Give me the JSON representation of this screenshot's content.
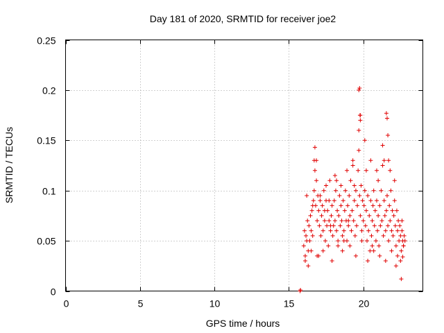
{
  "chart_data": {
    "type": "scatter",
    "title": "Day 181 of 2020, SRMTID for receiver joe2",
    "xlabel": "GPS time / hours",
    "ylabel": "SRMTID / TECUs",
    "xlim": [
      0,
      24
    ],
    "ylim": [
      0,
      0.25
    ],
    "xticks": [
      0,
      5,
      10,
      15,
      20
    ],
    "xtick_labels": [
      "0",
      "5",
      "10",
      "15",
      "20"
    ],
    "yticks": [
      0,
      0.05,
      0.1,
      0.15,
      0.2,
      0.25
    ],
    "ytick_labels": [
      "0",
      "0.05",
      "0.1",
      "0.15",
      "0.2",
      "0.25"
    ],
    "grid": true,
    "marker": "+",
    "color": "#e00000",
    "series": [
      {
        "name": "SRMTID",
        "x": [
          15.75,
          15.78,
          16.0,
          16.05,
          16.1,
          16.15,
          16.2,
          16.25,
          16.3,
          16.35,
          16.4,
          16.45,
          16.5,
          16.55,
          16.6,
          16.65,
          16.7,
          16.75,
          16.8,
          16.85,
          16.9,
          16.95,
          17.0,
          17.05,
          17.1,
          17.15,
          17.2,
          17.25,
          17.3,
          17.35,
          17.4,
          17.45,
          17.5,
          17.55,
          17.6,
          17.65,
          17.7,
          17.75,
          17.8,
          17.85,
          17.9,
          17.95,
          18.0,
          18.05,
          18.1,
          18.15,
          18.2,
          18.25,
          18.3,
          18.35,
          18.4,
          18.45,
          18.5,
          18.55,
          18.6,
          18.65,
          18.7,
          18.75,
          18.8,
          18.85,
          18.9,
          18.95,
          19.0,
          19.05,
          19.1,
          19.15,
          19.2,
          19.25,
          19.3,
          19.35,
          19.4,
          19.45,
          19.5,
          19.55,
          19.6,
          19.65,
          19.7,
          19.75,
          19.8,
          19.85,
          19.9,
          19.95,
          20.0,
          20.05,
          20.1,
          20.15,
          20.2,
          20.25,
          20.3,
          20.35,
          20.4,
          20.45,
          20.5,
          20.55,
          20.6,
          20.65,
          20.7,
          20.75,
          20.8,
          20.85,
          20.9,
          20.95,
          21.0,
          21.05,
          21.1,
          21.15,
          21.2,
          21.25,
          21.3,
          21.35,
          21.4,
          21.45,
          21.5,
          21.55,
          21.6,
          21.65,
          21.7,
          21.75,
          21.8,
          21.85,
          21.9,
          21.95,
          22.0,
          22.05,
          22.1,
          22.15,
          22.2,
          22.25,
          22.3,
          22.35,
          22.4,
          22.45,
          22.5,
          22.55,
          22.6,
          22.65,
          22.7,
          22.75,
          22.8,
          16.1,
          16.3,
          16.5,
          16.7,
          16.9,
          17.1,
          17.3,
          17.5,
          17.7,
          17.9,
          18.1,
          18.3,
          18.5,
          18.7,
          18.9,
          19.1,
          19.3,
          19.5,
          19.7,
          19.9,
          20.1,
          20.3,
          20.5,
          20.7,
          20.9,
          21.1,
          21.3,
          21.5,
          21.7,
          21.9,
          22.1,
          22.3,
          22.5,
          22.7,
          16.2,
          16.6,
          17.0,
          17.4,
          17.8,
          18.2,
          18.6,
          19.0,
          19.4,
          19.8,
          20.2,
          20.6,
          21.0,
          21.4,
          21.8,
          22.2,
          22.6,
          16.75,
          16.85,
          19.7,
          19.75,
          19.78,
          19.8,
          21.55,
          21.6,
          21.65,
          22.55,
          22.65
        ],
        "y": [
          0.0,
          0.001,
          0.045,
          0.06,
          0.035,
          0.055,
          0.05,
          0.07,
          0.04,
          0.065,
          0.05,
          0.075,
          0.06,
          0.08,
          0.055,
          0.09,
          0.1,
          0.12,
          0.085,
          0.11,
          0.07,
          0.095,
          0.08,
          0.065,
          0.09,
          0.055,
          0.075,
          0.085,
          0.06,
          0.1,
          0.07,
          0.05,
          0.09,
          0.065,
          0.08,
          0.045,
          0.07,
          0.11,
          0.06,
          0.075,
          0.085,
          0.055,
          0.065,
          0.09,
          0.07,
          0.1,
          0.06,
          0.08,
          0.05,
          0.075,
          0.095,
          0.065,
          0.085,
          0.07,
          0.055,
          0.09,
          0.06,
          0.08,
          0.1,
          0.07,
          0.05,
          0.085,
          0.065,
          0.095,
          0.075,
          0.11,
          0.06,
          0.08,
          0.125,
          0.07,
          0.09,
          0.055,
          0.1,
          0.065,
          0.085,
          0.12,
          0.14,
          0.095,
          0.075,
          0.105,
          0.06,
          0.09,
          0.07,
          0.085,
          0.1,
          0.065,
          0.08,
          0.05,
          0.095,
          0.06,
          0.075,
          0.04,
          0.09,
          0.055,
          0.07,
          0.085,
          0.1,
          0.065,
          0.08,
          0.05,
          0.09,
          0.06,
          0.075,
          0.045,
          0.085,
          0.065,
          0.1,
          0.07,
          0.125,
          0.055,
          0.09,
          0.075,
          0.06,
          0.08,
          0.095,
          0.065,
          0.05,
          0.085,
          0.07,
          0.1,
          0.06,
          0.08,
          0.055,
          0.075,
          0.09,
          0.065,
          0.045,
          0.08,
          0.06,
          0.07,
          0.05,
          0.065,
          0.055,
          0.04,
          0.06,
          0.05,
          0.045,
          0.055,
          0.05,
          0.03,
          0.025,
          0.04,
          0.13,
          0.035,
          0.095,
          0.04,
          0.105,
          0.09,
          0.03,
          0.115,
          0.045,
          0.105,
          0.05,
          0.12,
          0.045,
          0.13,
          0.035,
          0.16,
          0.05,
          0.15,
          0.03,
          0.13,
          0.04,
          0.12,
          0.035,
          0.145,
          0.03,
          0.13,
          0.04,
          0.11,
          0.035,
          0.03,
          0.045,
          0.095,
          0.085,
          0.035,
          0.08,
          0.065,
          0.11,
          0.04,
          0.07,
          0.105,
          0.175,
          0.12,
          0.045,
          0.11,
          0.13,
          0.12,
          0.025,
          0.07,
          0.143,
          0.13,
          0.2,
          0.202,
          0.175,
          0.17,
          0.177,
          0.172,
          0.155,
          0.012,
          0.034
        ]
      }
    ]
  }
}
